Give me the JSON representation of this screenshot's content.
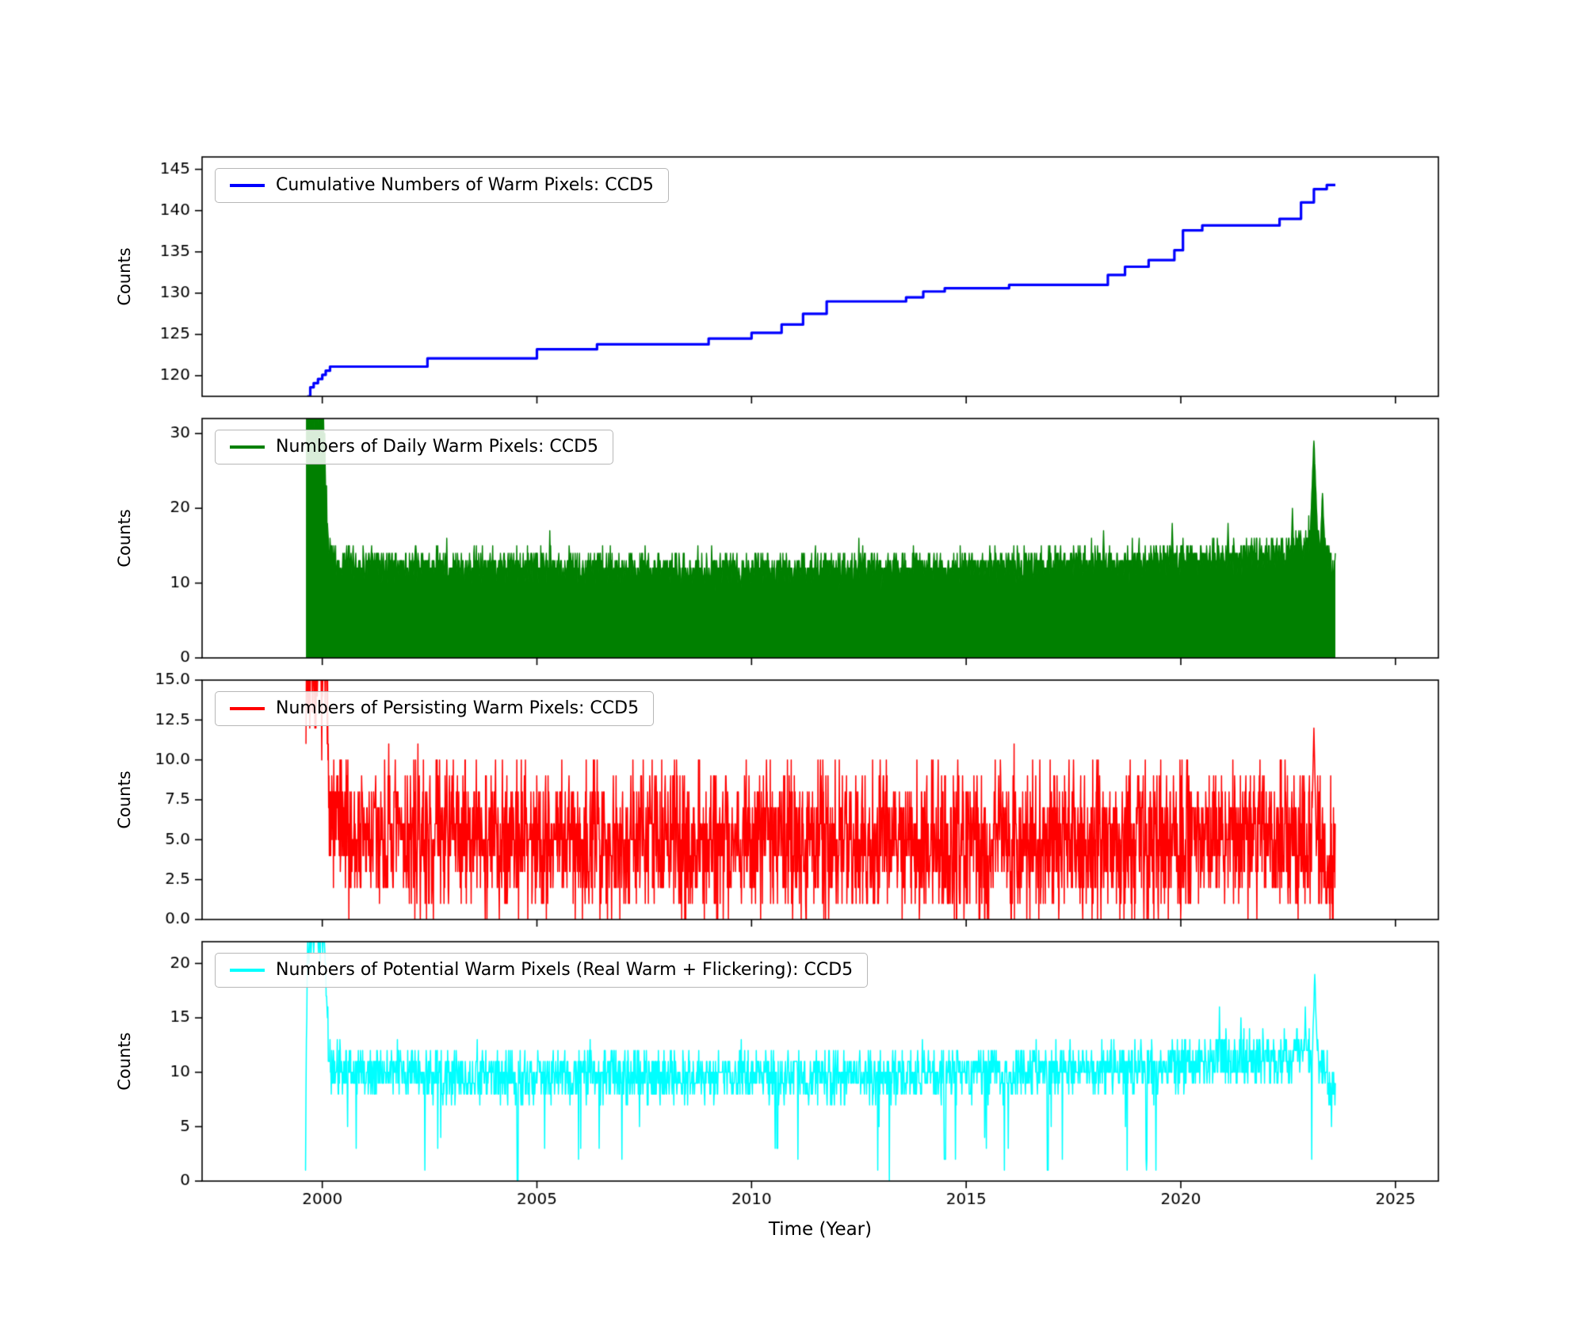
{
  "figure": {
    "xlabel": "Time (Year)",
    "ylabel": "Counts"
  },
  "chart_data": {
    "type": "line",
    "title": "",
    "xlabel": "Time (Year)",
    "ylabel": "Counts",
    "xlim": [
      1997.2,
      2026.0
    ],
    "xticks": [
      [
        2000,
        "2000"
      ],
      [
        2005,
        "2005"
      ],
      [
        2010,
        "2010"
      ],
      [
        2015,
        "2015"
      ],
      [
        2020,
        "2020"
      ],
      [
        2025,
        "2025"
      ]
    ],
    "grid": false,
    "legend_position": "upper-left-inside",
    "panels": [
      {
        "name": "cumulative-warm-pixels",
        "legend": "Cumulative Numbers of Warm Pixels: CCD5",
        "color": "#0000ff",
        "style": "step",
        "ylim": [
          117.5,
          146.5
        ],
        "yticks": [
          [
            120,
            "120"
          ],
          [
            125,
            "125"
          ],
          [
            130,
            "130"
          ],
          [
            135,
            "135"
          ],
          [
            140,
            "140"
          ],
          [
            145,
            "145"
          ]
        ],
        "points": [
          [
            1999.65,
            117.5
          ],
          [
            1999.72,
            118.6
          ],
          [
            1999.8,
            119.1
          ],
          [
            1999.9,
            119.6
          ],
          [
            2000.0,
            120.1
          ],
          [
            2000.08,
            120.6
          ],
          [
            2000.18,
            121.1
          ],
          [
            2002.45,
            122.1
          ],
          [
            2005.0,
            123.2
          ],
          [
            2006.4,
            123.8
          ],
          [
            2009.0,
            124.5
          ],
          [
            2010.0,
            125.2
          ],
          [
            2010.7,
            126.2
          ],
          [
            2011.2,
            127.5
          ],
          [
            2011.75,
            129.0
          ],
          [
            2013.6,
            129.5
          ],
          [
            2014.0,
            130.2
          ],
          [
            2014.5,
            130.6
          ],
          [
            2016.0,
            131.0
          ],
          [
            2018.3,
            132.2
          ],
          [
            2018.7,
            133.2
          ],
          [
            2019.25,
            134.0
          ],
          [
            2019.85,
            135.2
          ],
          [
            2020.05,
            137.6
          ],
          [
            2020.5,
            138.2
          ],
          [
            2022.3,
            139.0
          ],
          [
            2022.8,
            141.0
          ],
          [
            2023.1,
            142.6
          ],
          [
            2023.4,
            143.1
          ],
          [
            2023.6,
            143.1
          ]
        ]
      },
      {
        "name": "daily-warm-pixels",
        "legend": "Numbers of Daily Warm Pixels: CCD5",
        "color": "#008000",
        "style": "area",
        "ylim": [
          0,
          32
        ],
        "yticks": [
          [
            0,
            "0"
          ],
          [
            10,
            "10"
          ],
          [
            20,
            "20"
          ],
          [
            30,
            "30"
          ]
        ],
        "gen": {
          "seed": 42,
          "start": 1999.62,
          "end": 2023.6,
          "step": 0.01,
          "base": [
            [
              1999.62,
              33
            ],
            [
              2000.02,
              33
            ],
            [
              2000.14,
              15
            ],
            [
              2000.35,
              12.5
            ],
            [
              2002,
              12.2
            ],
            [
              2006,
              12.0
            ],
            [
              2010,
              11.8
            ],
            [
              2014,
              12.0
            ],
            [
              2017,
              12.5
            ],
            [
              2019,
              13.0
            ],
            [
              2021,
              13.3
            ],
            [
              2022.3,
              14.0
            ],
            [
              2022.9,
              15.5
            ],
            [
              2023.15,
              16.5
            ],
            [
              2023.4,
              13.5
            ],
            [
              2023.6,
              11.0
            ]
          ],
          "noise": 1.5,
          "min": 0,
          "clip": 32,
          "round": true,
          "spikes": [
            [
              2023.1,
              29,
              0.1
            ],
            [
              2023.3,
              22,
              0.08
            ],
            [
              2022.6,
              20,
              0.05
            ],
            [
              2005.3,
              17,
              0.03
            ],
            [
              2002.9,
              16,
              0.03
            ],
            [
              2012.5,
              16,
              0.03
            ],
            [
              2018.2,
              17,
              0.04
            ],
            [
              2019.8,
              18,
              0.04
            ],
            [
              2021.1,
              18,
              0.04
            ]
          ]
        }
      },
      {
        "name": "persisting-warm-pixels",
        "legend": "Numbers of Persisting Warm Pixels: CCD5",
        "color": "#ff0000",
        "style": "line",
        "ylim": [
          0,
          15
        ],
        "yticks": [
          [
            0,
            "0.0"
          ],
          [
            2.5,
            "2.5"
          ],
          [
            5,
            "5.0"
          ],
          [
            7.5,
            "7.5"
          ],
          [
            10,
            "10.0"
          ],
          [
            12.5,
            "12.5"
          ],
          [
            15,
            "15.0"
          ]
        ],
        "gen": {
          "seed": 7,
          "start": 1999.62,
          "end": 2023.6,
          "step": 0.008,
          "base": [
            [
              1999.62,
              16
            ],
            [
              2000.06,
              16
            ],
            [
              2000.2,
              6.5
            ],
            [
              2000.5,
              5.2
            ],
            [
              2005,
              5.2
            ],
            [
              2010,
              5.0
            ],
            [
              2015,
              4.8
            ],
            [
              2020,
              5.0
            ],
            [
              2023.0,
              5.5
            ],
            [
              2023.6,
              3.5
            ]
          ],
          "noise": 2.9,
          "min": 0,
          "clip": 15,
          "round": true,
          "spikes": [
            [
              2023.1,
              12,
              0.05
            ],
            [
              2010.35,
              10,
              0.02
            ],
            [
              2009.4,
              10,
              0.02
            ],
            [
              2015.8,
              10,
              0.02
            ],
            [
              2017.5,
              10,
              0.02
            ],
            [
              2002.9,
              10.5,
              0.02
            ],
            [
              2019.0,
              10,
              0.02
            ]
          ]
        }
      },
      {
        "name": "potential-warm-pixels",
        "legend": "Numbers of Potential Warm Pixels (Real Warm + Flickering): CCD5",
        "color": "#00ffff",
        "style": "line",
        "ylim": [
          0,
          22
        ],
        "yticks": [
          [
            0,
            "0"
          ],
          [
            5,
            "5"
          ],
          [
            10,
            "10"
          ],
          [
            15,
            "15"
          ],
          [
            20,
            "20"
          ]
        ],
        "gen": {
          "seed": 13,
          "start": 1999.6,
          "end": 2023.6,
          "step": 0.01,
          "base": [
            [
              1999.6,
              1
            ],
            [
              1999.66,
              23
            ],
            [
              2000.04,
              23
            ],
            [
              2000.16,
              11
            ],
            [
              2000.4,
              10.2
            ],
            [
              2004,
              9.6
            ],
            [
              2008,
              9.8
            ],
            [
              2012,
              9.6
            ],
            [
              2016,
              10.0
            ],
            [
              2019,
              10.3
            ],
            [
              2021,
              10.8
            ],
            [
              2022.5,
              11.2
            ],
            [
              2023.1,
              12.5
            ],
            [
              2023.6,
              8.0
            ]
          ],
          "noise": 1.5,
          "min": 0,
          "clip": 22,
          "round": true,
          "drop_prob": 0.012,
          "drop_base": 0.3,
          "drop_range": 5,
          "spikes": [
            [
              2023.12,
              19,
              0.07
            ],
            [
              2022.9,
              16,
              0.04
            ],
            [
              2020.9,
              16,
              0.03
            ],
            [
              2021.4,
              15.5,
              0.03
            ]
          ],
          "dips": [
            [
              2004.55,
              0.4,
              0.015
            ],
            [
              2014.5,
              1.8,
              0.02
            ],
            [
              2016.9,
              1.0,
              0.015
            ],
            [
              2019.2,
              1.5,
              0.015
            ],
            [
              2010.6,
              2.5,
              0.015
            ]
          ]
        }
      }
    ]
  }
}
